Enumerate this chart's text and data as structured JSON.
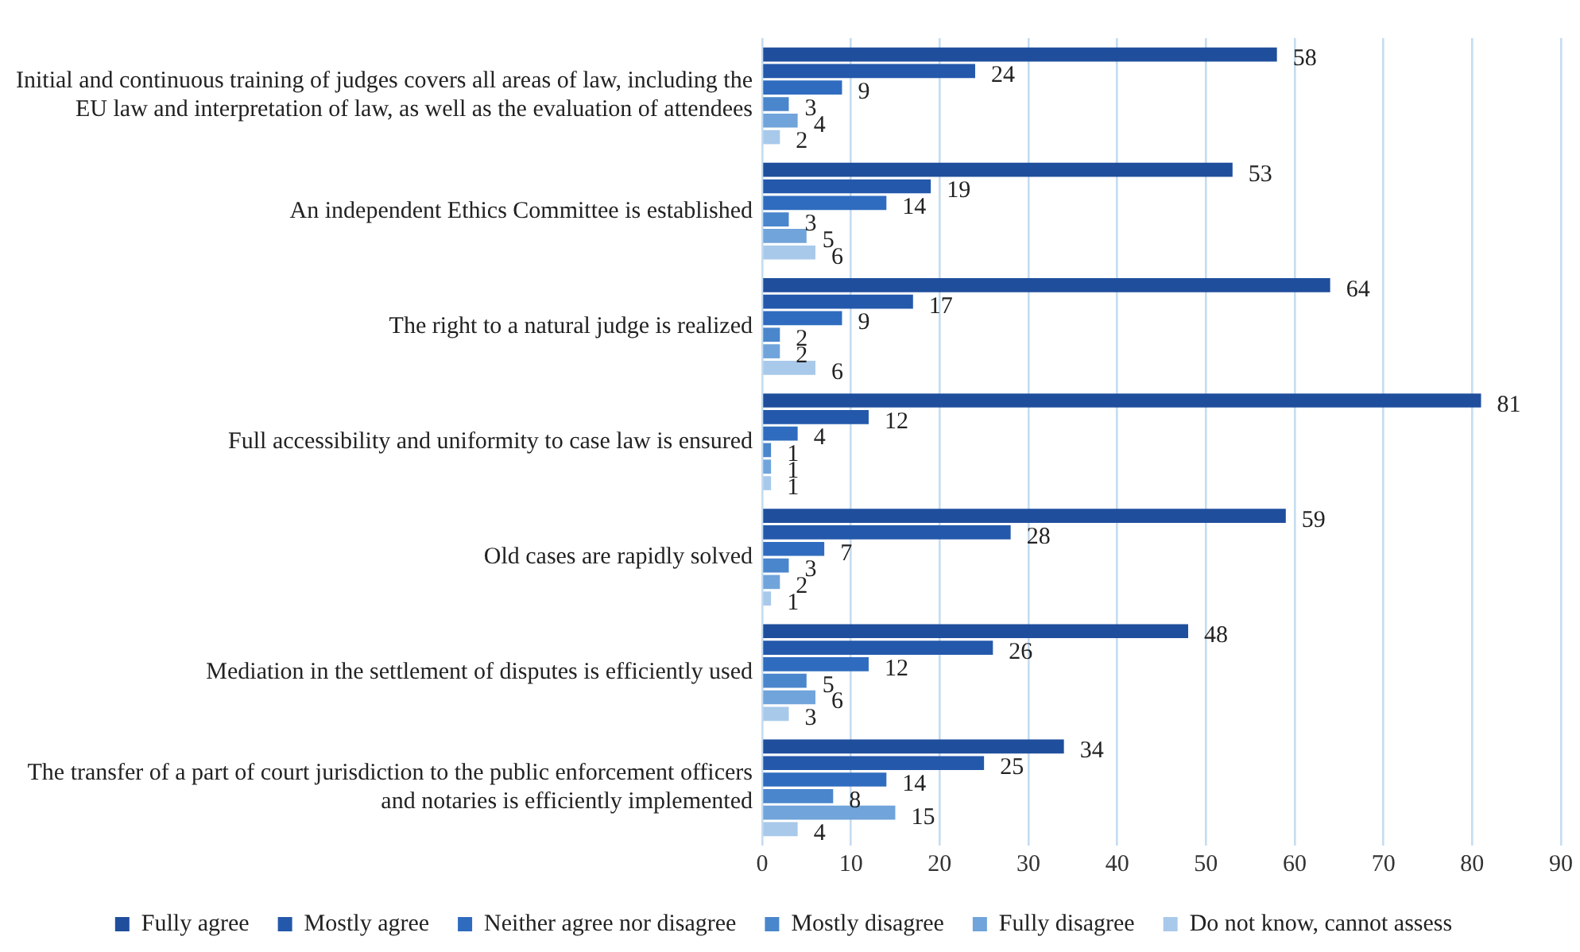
{
  "chart_data": {
    "type": "bar",
    "orientation": "horizontal",
    "categories": [
      "Initial and continuous training of judges covers all areas of law, including the EU law and interpretation of law, as well as the evaluation of attendees",
      "An independent Ethics Committee is established",
      "The right to a natural judge is realized",
      "Full accessibility and uniformity to case law is ensured",
      "Old cases are rapidly solved",
      "Mediation in the settlement of disputes is efficiently used",
      "The transfer of a part of court jurisdiction to the public enforcement officers and notaries is efficiently implemented"
    ],
    "series": [
      {
        "name": "Fully agree",
        "color": "#1f4e9c",
        "values": [
          58,
          53,
          64,
          81,
          59,
          48,
          34
        ]
      },
      {
        "name": "Mostly agree",
        "color": "#2458ab",
        "values": [
          24,
          19,
          17,
          12,
          28,
          26,
          25
        ]
      },
      {
        "name": "Neither agree nor disagree",
        "color": "#2f6cbf",
        "values": [
          9,
          14,
          9,
          4,
          7,
          12,
          14
        ]
      },
      {
        "name": "Mostly disagree",
        "color": "#4a86cc",
        "values": [
          3,
          3,
          2,
          1,
          3,
          5,
          8
        ]
      },
      {
        "name": "Fully disagree",
        "color": "#70a4da",
        "values": [
          4,
          5,
          2,
          1,
          2,
          6,
          15
        ]
      },
      {
        "name": "Do not know, cannot assess",
        "color": "#a8c9ea",
        "values": [
          2,
          6,
          6,
          1,
          1,
          3,
          4
        ]
      }
    ],
    "xlim": [
      0,
      90
    ],
    "xticks": [
      0,
      10,
      20,
      30,
      40,
      50,
      60,
      70,
      80,
      90
    ],
    "grid": "x",
    "legend": "bottom",
    "data_labels": true
  }
}
